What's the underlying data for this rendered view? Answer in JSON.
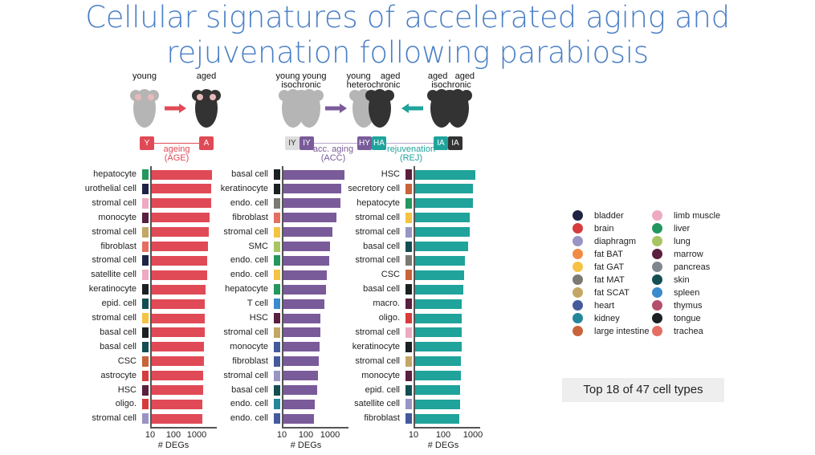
{
  "title_lines": [
    "Cellular signatures of accelerated aging and",
    "rejuvenation following parabiosis"
  ],
  "schematic": {
    "left": {
      "young": "young",
      "aged": "aged",
      "tag_y": "Y",
      "tag_a": "A",
      "comparison": "ageing",
      "abbr": "(AGE)",
      "color": "#e04a56"
    },
    "right": {
      "iso_young": [
        "young",
        "young"
      ],
      "iso_young_sub": "isochronic",
      "hetero": [
        "young",
        "aged"
      ],
      "hetero_sub": "heterochronic",
      "iso_aged": [
        "aged",
        "aged"
      ],
      "iso_aged_sub": "isochronic",
      "tags": [
        "IY",
        "IY",
        "HY",
        "HA",
        "IA",
        "IA"
      ],
      "acc": "acc. aging",
      "acc_abbr": "(ACC)",
      "acc_color": "#7a5b9a",
      "rej": "rejuvenation",
      "rej_abbr": "(REJ)",
      "rej_color": "#1fa39b"
    }
  },
  "tissue_colors": {
    "bladder": "#1e2244",
    "brain": "#d63c3c",
    "diaphragm": "#9895c4",
    "fat BAT": "#f28a45",
    "fat GAT": "#f5c343",
    "fat MAT": "#7b7a72",
    "fat SCAT": "#c4a765",
    "heart": "#445a9c",
    "kidney": "#24869a",
    "large intestine": "#c8643a",
    "limb muscle": "#eeaac0",
    "liver": "#23975f",
    "lung": "#a8c463",
    "marrow": "#5a1f3e",
    "pancreas": "#7f878e",
    "skin": "#134f52",
    "spleen": "#3a8ccc",
    "thymus": "#b34f6a",
    "tongue": "#1b2022",
    "trachea": "#e56e62"
  },
  "legend": {
    "col1": [
      "bladder",
      "brain",
      "diaphragm",
      "fat BAT",
      "fat GAT",
      "fat MAT",
      "fat SCAT",
      "heart",
      "kidney",
      "large intestine"
    ],
    "col2": [
      "limb muscle",
      "liver",
      "lung",
      "marrow",
      "pancreas",
      "skin",
      "spleen",
      "thymus",
      "tongue",
      "trachea"
    ]
  },
  "note": "Top 18 of 47 cell types",
  "chart_data": [
    {
      "type": "bar",
      "orientation": "horizontal",
      "name": "AGE",
      "xscale": "log",
      "xlabel": "# DEGs",
      "xticks": [
        10,
        100,
        1000
      ],
      "color": "#e04a56",
      "categories": [
        "hepatocyte",
        "urothelial cell",
        "stromal cell",
        "monocyte",
        "stromal cell",
        "fibroblast",
        "stromal cell",
        "satellite cell",
        "keratinocyte",
        "epid. cell",
        "stromal cell",
        "basal cell",
        "basal cell",
        "CSC",
        "astrocyte",
        "HSC",
        "oligo.",
        "stromal cell"
      ],
      "tissues": [
        "liver",
        "bladder",
        "limb muscle",
        "marrow",
        "fat SCAT",
        "trachea",
        "bladder",
        "limb muscle",
        "tongue",
        "skin",
        "fat GAT",
        "tongue",
        "skin",
        "large intestine",
        "brain",
        "marrow",
        "brain",
        "diaphragm"
      ],
      "values": [
        4200,
        4000,
        3800,
        3400,
        3100,
        2850,
        2600,
        2500,
        2250,
        2000,
        2000,
        2000,
        1900,
        1900,
        1750,
        1700,
        1650,
        1600
      ]
    },
    {
      "type": "bar",
      "orientation": "horizontal",
      "name": "ACC",
      "xscale": "log",
      "xlabel": "# DEGs",
      "xticks": [
        10,
        100,
        1000
      ],
      "color": "#7a5b9a",
      "categories": [
        "basal cell",
        "keratinocyte",
        "endo. cell",
        "fibroblast",
        "stromal cell",
        "SMC",
        "endo. cell",
        "endo. cell",
        "hepatocyte",
        "T cell",
        "HSC",
        "stromal cell",
        "monocyte",
        "fibroblast",
        "stromal cell",
        "basal cell",
        "endo. cell",
        "endo. cell"
      ],
      "tissues": [
        "tongue",
        "tongue",
        "fat MAT",
        "trachea",
        "fat GAT",
        "lung",
        "liver",
        "fat GAT",
        "liver",
        "spleen",
        "marrow",
        "fat SCAT",
        "heart",
        "heart",
        "diaphragm",
        "skin",
        "kidney",
        "heart"
      ],
      "values": [
        3550,
        2750,
        2450,
        1650,
        1170,
        900,
        830,
        700,
        650,
        525,
        360,
        360,
        330,
        315,
        295,
        265,
        220,
        200
      ]
    },
    {
      "type": "bar",
      "orientation": "horizontal",
      "name": "REJ",
      "xscale": "log",
      "xlabel": "# DEGs",
      "xticks": [
        10,
        100,
        1000
      ],
      "color": "#1fa39b",
      "categories": [
        "HSC",
        "secretory cell",
        "hepatocyte",
        "stromal cell",
        "stromal cell",
        "basal cell",
        "stromal cell",
        "CSC",
        "basal cell",
        "macro.",
        "oligo.",
        "stromal cell",
        "keratinocyte",
        "stromal cell",
        "monocyte",
        "epid. cell",
        "satellite cell",
        "fibroblast"
      ],
      "tissues": [
        "marrow",
        "large intestine",
        "liver",
        "fat GAT",
        "diaphragm",
        "skin",
        "fat MAT",
        "large intestine",
        "tongue",
        "marrow",
        "brain",
        "limb muscle",
        "tongue",
        "fat SCAT",
        "marrow",
        "skin",
        "diaphragm",
        "heart"
      ],
      "values": [
        1130,
        960,
        940,
        740,
        740,
        660,
        490,
        470,
        445,
        400,
        400,
        400,
        400,
        380,
        375,
        355,
        350,
        325
      ]
    }
  ]
}
